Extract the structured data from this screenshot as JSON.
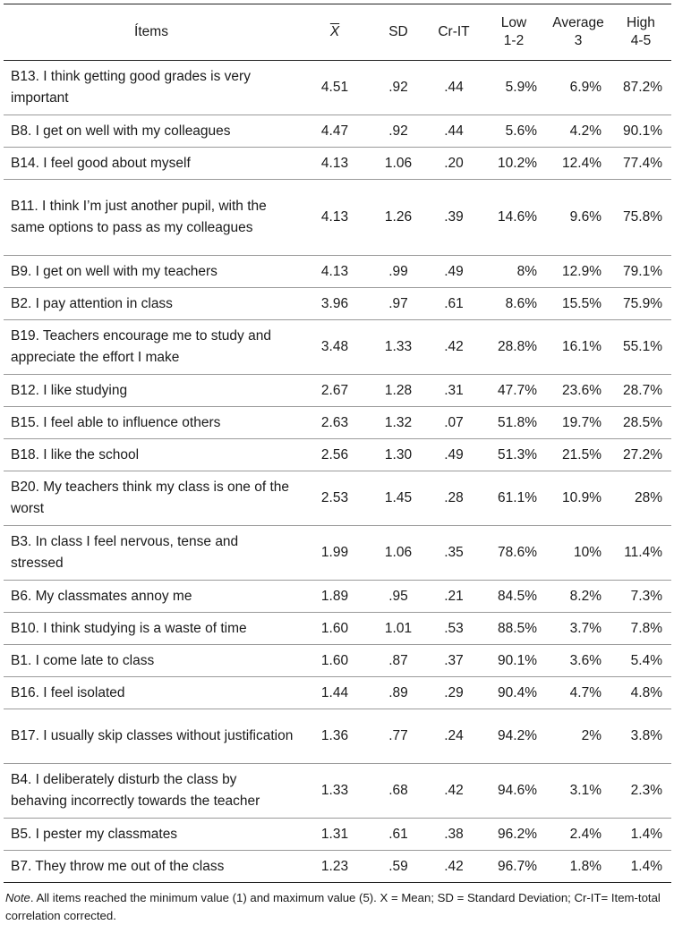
{
  "headers": {
    "items": "Ítems",
    "mean": "X",
    "sd": "SD",
    "crit": "Cr-IT",
    "low_line1": "Low",
    "low_line2": "1-2",
    "avg_line1": "Average",
    "avg_line2": "3",
    "high_line1": "High",
    "high_line2": "4-5"
  },
  "rows": [
    {
      "item": "B13. I think getting good grades is very important",
      "mean": "4.51",
      "sd": ".92",
      "crit": ".44",
      "low": "5.9%",
      "avg": "6.9%",
      "high": "87.2%"
    },
    {
      "item": "B8. I get on well with my colleagues",
      "mean": "4.47",
      "sd": ".92",
      "crit": ".44",
      "low": "5.6%",
      "avg": "4.2%",
      "high": "90.1%"
    },
    {
      "item": "B14. I feel good about myself",
      "mean": "4.13",
      "sd": "1.06",
      "crit": ".20",
      "low": "10.2%",
      "avg": "12.4%",
      "high": "77.4%"
    },
    {
      "item": "B11. I think I’m just another pupil, with the same options to pass as my colleagues",
      "mean": "4.13",
      "sd": "1.26",
      "crit": ".39",
      "low": "14.6%",
      "avg": "9.6%",
      "high": "75.8%"
    },
    {
      "item": "B9. I get on well with my teachers",
      "mean": "4.13",
      "sd": ".99",
      "crit": ".49",
      "low": "8%",
      "avg": "12.9%",
      "high": "79.1%"
    },
    {
      "item": "B2. I pay attention in class",
      "mean": "3.96",
      "sd": ".97",
      "crit": ".61",
      "low": "8.6%",
      "avg": "15.5%",
      "high": "75.9%"
    },
    {
      "item": "B19. Teachers encourage me to study and appreciate the effort I make",
      "mean": "3.48",
      "sd": "1.33",
      "crit": ".42",
      "low": "28.8%",
      "avg": "16.1%",
      "high": "55.1%"
    },
    {
      "item": "B12. I like studying",
      "mean": "2.67",
      "sd": "1.28",
      "crit": ".31",
      "low": "47.7%",
      "avg": "23.6%",
      "high": "28.7%"
    },
    {
      "item": "B15. I feel able to influence others",
      "mean": "2.63",
      "sd": "1.32",
      "crit": ".07",
      "low": "51.8%",
      "avg": "19.7%",
      "high": "28.5%"
    },
    {
      "item": "B18. I like the school",
      "mean": "2.56",
      "sd": "1.30",
      "crit": ".49",
      "low": "51.3%",
      "avg": "21.5%",
      "high": "27.2%"
    },
    {
      "item": "B20. My teachers think my class is one of the worst",
      "mean": "2.53",
      "sd": "1.45",
      "crit": ".28",
      "low": "61.1%",
      "avg": "10.9%",
      "high": "28%"
    },
    {
      "item": "B3. In class I feel nervous, tense and stressed",
      "mean": "1.99",
      "sd": "1.06",
      "crit": ".35",
      "low": "78.6%",
      "avg": "10%",
      "high": "11.4%"
    },
    {
      "item": "B6. My classmates annoy me",
      "mean": "1.89",
      "sd": ".95",
      "crit": ".21",
      "low": "84.5%",
      "avg": "8.2%",
      "high": "7.3%"
    },
    {
      "item": "B10. I think studying is a waste of time",
      "mean": "1.60",
      "sd": "1.01",
      "crit": ".53",
      "low": "88.5%",
      "avg": "3.7%",
      "high": "7.8%"
    },
    {
      "item": "B1. I come late to class",
      "mean": "1.60",
      "sd": ".87",
      "crit": ".37",
      "low": "90.1%",
      "avg": "3.6%",
      "high": "5.4%"
    },
    {
      "item": "B16. I feel isolated",
      "mean": "1.44",
      "sd": ".89",
      "crit": ".29",
      "low": "90.4%",
      "avg": "4.7%",
      "high": "4.8%"
    },
    {
      "item": "B17. I usually skip classes without justification",
      "mean": "1.36",
      "sd": ".77",
      "crit": ".24",
      "low": "94.2%",
      "avg": "2%",
      "high": "3.8%"
    },
    {
      "item": "B4. I deliberately disturb the class by behaving incorrectly towards the teacher",
      "mean": "1.33",
      "sd": ".68",
      "crit": ".42",
      "low": "94.6%",
      "avg": "3.1%",
      "high": "2.3%"
    },
    {
      "item": "B5. I pester my classmates",
      "mean": "1.31",
      "sd": ".61",
      "crit": ".38",
      "low": "96.2%",
      "avg": "2.4%",
      "high": "1.4%"
    },
    {
      "item": "B7. They throw me out of the class",
      "mean": "1.23",
      "sd": ".59",
      "crit": ".42",
      "low": "96.7%",
      "avg": "1.8%",
      "high": "1.4%"
    }
  ],
  "note": {
    "label": "Note",
    "text": ". All items reached the minimum value (1) and maximum value (5). X = Mean; SD = Standard Deviation; Cr-IT= Item-total correlation corrected."
  }
}
